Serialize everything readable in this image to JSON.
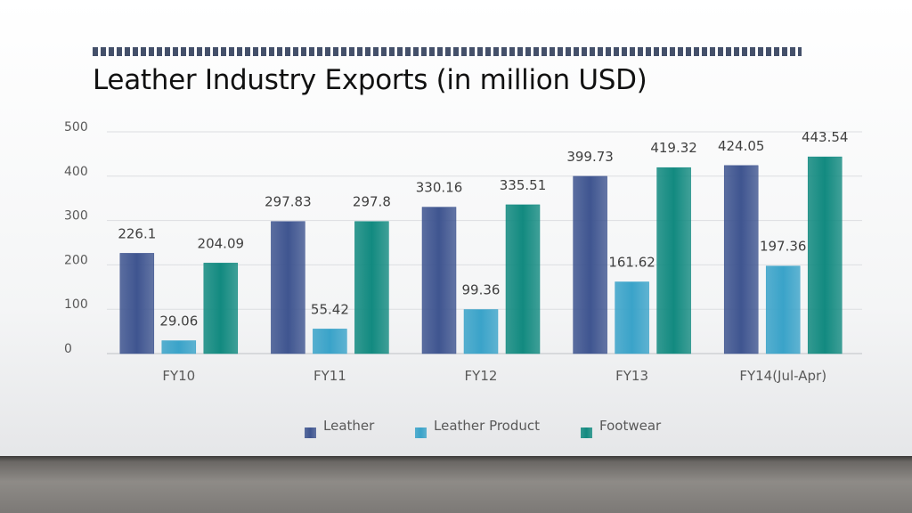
{
  "slide": {
    "title": "Leather Industry Exports (in million USD)"
  },
  "colors": {
    "Leather": "#3f5590",
    "Leather Product": "#3aa3c9",
    "Footwear": "#128a80",
    "title_bar": "#44506a"
  },
  "chart_data": {
    "type": "bar",
    "title": "Leather Industry Exports (in million USD)",
    "categories": [
      "FY10",
      "FY11",
      "FY12",
      "FY13",
      "FY14(Jul-Apr)"
    ],
    "series": [
      {
        "name": "Leather",
        "values": [
          226.1,
          297.83,
          330.16,
          399.73,
          424.05
        ]
      },
      {
        "name": "Leather Product",
        "values": [
          29.06,
          55.42,
          99.36,
          161.62,
          197.36
        ]
      },
      {
        "name": "Footwear",
        "values": [
          204.09,
          297.8,
          335.51,
          419.32,
          443.54
        ]
      }
    ],
    "value_labels": [
      [
        "226.1",
        "297.83",
        "330.16",
        "399.73",
        "424.05"
      ],
      [
        "29.06",
        "55.42",
        "99.36",
        "161.62",
        "197.36"
      ],
      [
        "204.09",
        "297.8",
        "335.51",
        "419.32",
        "443.54"
      ]
    ],
    "yticks": [
      "0",
      "100",
      "200",
      "300",
      "400",
      "500"
    ],
    "ylim": [
      0,
      500
    ],
    "grid": true,
    "legend": "bottom"
  }
}
